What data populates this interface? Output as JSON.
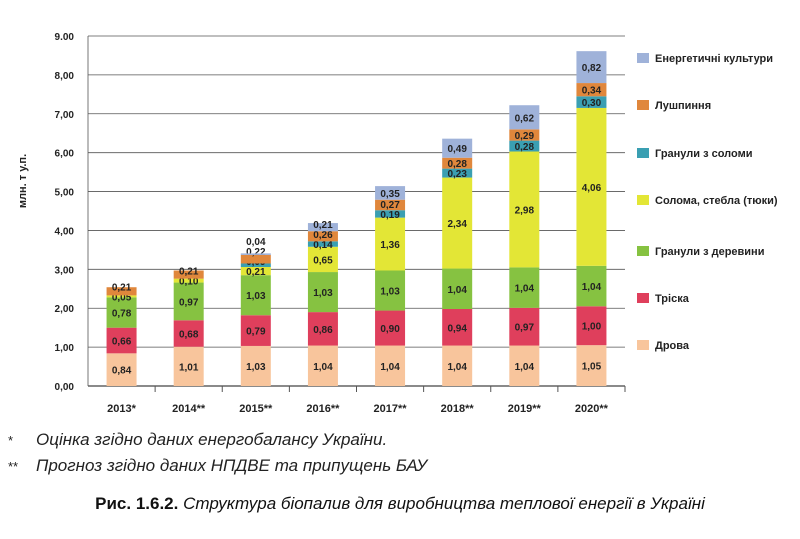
{
  "chart_data": {
    "type": "bar",
    "stacked": true,
    "ylabel": "млн. т у.п.",
    "ylim": [
      0,
      9
    ],
    "yticks": [
      "0,00",
      "1,00",
      "2,00",
      "3,00",
      "4,00",
      "5,00",
      "6,00",
      "7,00",
      "8,00",
      "9.00"
    ],
    "categories": [
      "2013*",
      "2014**",
      "2015**",
      "2016**",
      "2017**",
      "2018**",
      "2019**",
      "2020**"
    ],
    "legend_position": "right",
    "series": [
      {
        "name": "Дрова",
        "color": "#f8c59c",
        "values": [
          0.84,
          1.01,
          1.03,
          1.04,
          1.04,
          1.04,
          1.04,
          1.05
        ],
        "labels": [
          "0,84",
          "1,01",
          "1,03",
          "1,04",
          "1,04",
          "1,04",
          "1,04",
          "1,05"
        ]
      },
      {
        "name": "Тріска",
        "color": "#df3f5c",
        "values": [
          0.66,
          0.68,
          0.79,
          0.86,
          0.9,
          0.94,
          0.97,
          1.0
        ],
        "labels": [
          "0,66",
          "0,68",
          "0,79",
          "0,86",
          "0,90",
          "0,94",
          "0,97",
          "1,00"
        ]
      },
      {
        "name": "Гранули з деревини",
        "color": "#86c241",
        "values": [
          0.78,
          0.97,
          1.03,
          1.03,
          1.03,
          1.04,
          1.04,
          1.04
        ],
        "labels": [
          "0,78",
          "0,97",
          "1,03",
          "1,03",
          "1,03",
          "1,04",
          "1,04",
          "1,04"
        ]
      },
      {
        "name": "Солома, стебла (тюки)",
        "color": "#e3e636",
        "values": [
          0.05,
          0.1,
          0.21,
          0.65,
          1.36,
          2.34,
          2.98,
          4.06
        ],
        "labels": [
          "0,05",
          "0,10",
          "0,21",
          "0,65",
          "1,36",
          "2,34",
          "2,98",
          "4,06"
        ]
      },
      {
        "name": "Гранули з соломи",
        "color": "#3a9fb2",
        "values": [
          0,
          0,
          0.09,
          0.14,
          0.19,
          0.23,
          0.28,
          0.3
        ],
        "labels": [
          "",
          "",
          "0,09",
          "0,14",
          "0,19",
          "0,23",
          "0,28",
          "0,30"
        ]
      },
      {
        "name": "Лушпиння",
        "color": "#e0873c",
        "values": [
          0.21,
          0.21,
          0.22,
          0.26,
          0.27,
          0.28,
          0.29,
          0.34
        ],
        "labels": [
          "0,21",
          "0,21",
          "0,22",
          "0,26",
          "0,27",
          "0,28",
          "0,29",
          "0,34"
        ]
      },
      {
        "name": "Енергетичні культури",
        "color": "#9fb2d9",
        "values": [
          0,
          0,
          0.04,
          0.21,
          0.35,
          0.49,
          0.62,
          0.82
        ],
        "labels": [
          "",
          "",
          "0,04",
          "0,21",
          "0,35",
          "0,49",
          "0,62",
          "0,82"
        ]
      }
    ]
  },
  "notes": [
    {
      "mark": "*",
      "text": "Оцінка згідно даних енергобалансу України."
    },
    {
      "mark": "**",
      "text": "Прогноз згідно даних НПДВЕ та припущень БАУ"
    }
  ],
  "caption": {
    "label": "Рис. 1.6.2.",
    "text": "Структура біопалив для виробництва теплової енергії в Україні"
  }
}
